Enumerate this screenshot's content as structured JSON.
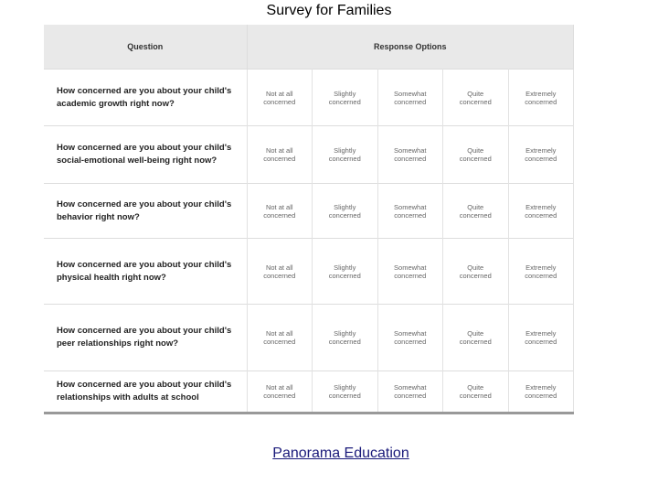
{
  "title": "Survey for Families",
  "table": {
    "header": [
      "Question",
      "Response Options"
    ],
    "rows": [
      {
        "question": "How concerned are you about your child's academic growth right now?",
        "options": [
          "Not at all concerned",
          "Slightly concerned",
          "Somewhat concerned",
          "Quite concerned",
          "Extremely concerned"
        ]
      },
      {
        "question": "How concerned are you about your child's social-emotional well-being right now?",
        "options": [
          "Not at all concerned",
          "Slightly concerned",
          "Somewhat concerned",
          "Quite concerned",
          "Extremely concerned"
        ]
      },
      {
        "question": "How concerned are you about your child's behavior right now?",
        "options": [
          "Not at all concerned",
          "Slightly concerned",
          "Somewhat concerned",
          "Quite concerned",
          "Extremely concerned"
        ]
      },
      {
        "question": "How concerned are you about your child's physical health right now?",
        "options": [
          "Not at all concerned",
          "Slightly concerned",
          "Somewhat concerned",
          "Quite concerned",
          "Extremely concerned"
        ]
      },
      {
        "question": "How concerned are you about your child's peer relationships right now?",
        "options": [
          "Not at all concerned",
          "Slightly concerned",
          "Somewhat concerned",
          "Quite concerned",
          "Extremely concerned"
        ]
      },
      {
        "question": "How concerned are you about your child's relationships with adults at school",
        "options": [
          "Not at all concerned",
          "Slightly concerned",
          "Somewhat concerned",
          "Quite concerned",
          "Extremely concerned"
        ]
      }
    ]
  },
  "footer": {
    "link": "Panorama Education"
  }
}
